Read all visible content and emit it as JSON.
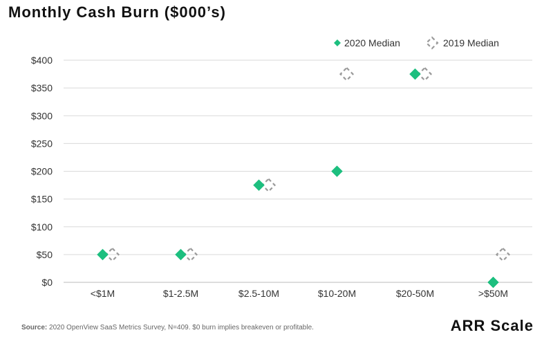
{
  "chart_data": {
    "type": "scatter",
    "title": "Monthly Cash Burn ($000’s)",
    "xlabel": "ARR Scale",
    "ylabel": "",
    "categories": [
      "<$1M",
      "$1-2.5M",
      "$2.5-10M",
      "$10-20M",
      "$20-50M",
      ">$50M"
    ],
    "series": [
      {
        "name": "2020 Median",
        "values": [
          50,
          50,
          175,
          200,
          375,
          0
        ],
        "color": "#1dbf7f",
        "marker": "filled-diamond"
      },
      {
        "name": "2019 Median",
        "values": [
          50,
          50,
          175,
          375,
          375,
          50
        ],
        "color": "#9a9a9a",
        "marker": "dashed-diamond"
      }
    ],
    "ylim": [
      0,
      400
    ],
    "yticks": [
      0,
      50,
      100,
      150,
      200,
      250,
      300,
      350,
      400
    ],
    "ytick_labels": [
      "$0",
      "$50",
      "$100",
      "$150",
      "$200",
      "$250",
      "$300",
      "$350",
      "$400"
    ],
    "grid": true,
    "legend_position": "top-right"
  },
  "source": {
    "label": "Source:",
    "text": " 2020 OpenView SaaS Metrics Survey, N=409. $0 burn implies breakeven or profitable."
  }
}
